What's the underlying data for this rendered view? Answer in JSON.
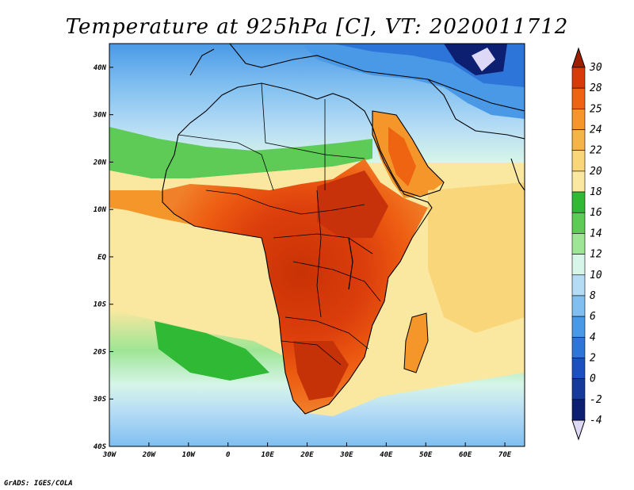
{
  "title": "Temperature at 925hPa [C], VT: 2020011712",
  "credit": "GrADS: IGES/COLA",
  "map": {
    "lon_range": [
      -30,
      75
    ],
    "lat_range": [
      -40,
      45
    ],
    "lat_labels": [
      {
        "lat": 40,
        "text": "40N"
      },
      {
        "lat": 30,
        "text": "30N"
      },
      {
        "lat": 20,
        "text": "20N"
      },
      {
        "lat": 10,
        "text": "10N"
      },
      {
        "lat": 0,
        "text": "EQ"
      },
      {
        "lat": -10,
        "text": "10S"
      },
      {
        "lat": -20,
        "text": "20S"
      },
      {
        "lat": -30,
        "text": "30S"
      },
      {
        "lat": -40,
        "text": "40S"
      }
    ],
    "lon_labels": [
      {
        "lon": -30,
        "text": "30W"
      },
      {
        "lon": -20,
        "text": "20W"
      },
      {
        "lon": -10,
        "text": "10W"
      },
      {
        "lon": 0,
        "text": "0"
      },
      {
        "lon": 10,
        "text": "10E"
      },
      {
        "lon": 20,
        "text": "20E"
      },
      {
        "lon": 30,
        "text": "30E"
      },
      {
        "lon": 40,
        "text": "40E"
      },
      {
        "lon": 50,
        "text": "50E"
      },
      {
        "lon": 60,
        "text": "60E"
      },
      {
        "lon": 70,
        "text": "70E"
      }
    ]
  },
  "legend": {
    "labels": [
      "30",
      "28",
      "25",
      "24",
      "22",
      "20",
      "18",
      "16",
      "14",
      "12",
      "10",
      "8",
      "6",
      "4",
      "2",
      "0",
      "-2",
      "-4"
    ],
    "colors": [
      "#a01e00",
      "#d93a0a",
      "#ef6410",
      "#f4962a",
      "#f5b446",
      "#f9d67a",
      "#fae8a0",
      "#2fb934",
      "#5ecb56",
      "#9ee595",
      "#d7f5e9",
      "#b5dcf5",
      "#80bff0",
      "#4a99e6",
      "#2d75d9",
      "#1c4fc0",
      "#153a9a",
      "#0d1f70",
      "#dcd8f5"
    ]
  }
}
